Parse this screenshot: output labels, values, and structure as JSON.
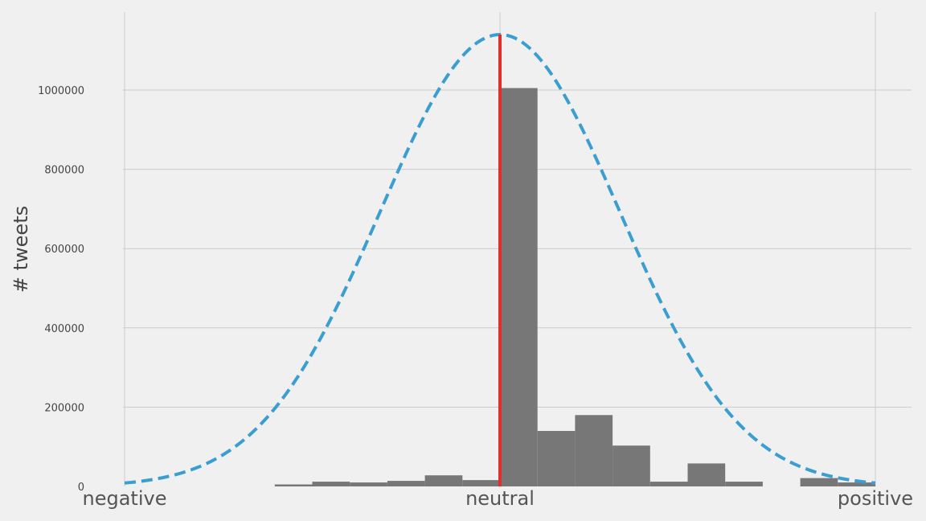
{
  "chart_data": {
    "type": "bar",
    "title": "",
    "xlabel": "",
    "ylabel": "# tweets",
    "xlim": [
      -1,
      1
    ],
    "ylim": [
      0,
      1200000
    ],
    "grid": true,
    "x_ticks": [
      {
        "value": -1,
        "label": "negative"
      },
      {
        "value": 0,
        "label": "neutral"
      },
      {
        "value": 1,
        "label": "positive"
      }
    ],
    "y_ticks": [
      0,
      200000,
      400000,
      600000,
      800000,
      1000000
    ],
    "histogram": {
      "name": "",
      "color": "#777777",
      "bin_width": 0.1,
      "bins": [
        {
          "start": -0.6,
          "value": 5000
        },
        {
          "start": -0.5,
          "value": 12000
        },
        {
          "start": -0.4,
          "value": 10000
        },
        {
          "start": -0.3,
          "value": 14000
        },
        {
          "start": -0.2,
          "value": 28000
        },
        {
          "start": -0.1,
          "value": 16000
        },
        {
          "start": 0.0,
          "value": 1005000
        },
        {
          "start": 0.1,
          "value": 140000
        },
        {
          "start": 0.2,
          "value": 180000
        },
        {
          "start": 0.3,
          "value": 103000
        },
        {
          "start": 0.4,
          "value": 12000
        },
        {
          "start": 0.5,
          "value": 58000
        },
        {
          "start": 0.6,
          "value": 12000
        },
        {
          "start": 0.7,
          "value": 0
        },
        {
          "start": 0.8,
          "value": 21000
        },
        {
          "start": 0.9,
          "value": 10000
        }
      ]
    },
    "normal_curve": {
      "color": "#3a9fd0",
      "style": "dashed",
      "mean": 0,
      "std": 0.32,
      "peak": 1140000
    },
    "mean_line": {
      "x": 0,
      "color": "#e0302e"
    }
  }
}
